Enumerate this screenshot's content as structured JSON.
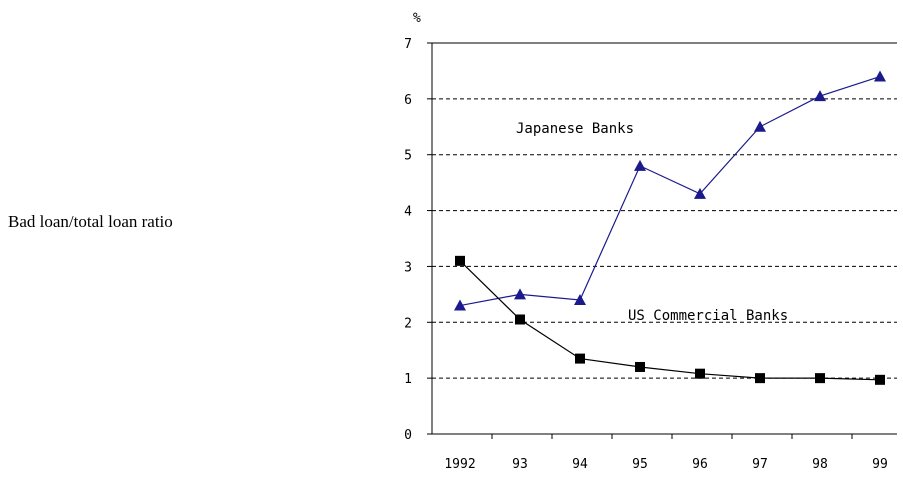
{
  "side_label": "Bad loan/total loan ratio",
  "chart_data": {
    "type": "line",
    "unit_label": "%",
    "categories": [
      "1992",
      "93",
      "94",
      "95",
      "96",
      "97",
      "98",
      "99"
    ],
    "yticks": [
      "0",
      "1",
      "2",
      "3",
      "4",
      "5",
      "6",
      "7"
    ],
    "ylim": [
      0,
      7
    ],
    "grid": "dashed horizontal",
    "series": [
      {
        "name": "Japanese Banks",
        "marker": "triangle",
        "color": "#1a1a8c",
        "values": [
          2.3,
          2.5,
          2.4,
          4.8,
          4.3,
          5.5,
          6.05,
          6.4
        ]
      },
      {
        "name": "US Commercial Banks",
        "marker": "square",
        "color": "#000000",
        "values": [
          3.1,
          2.05,
          1.35,
          1.2,
          1.08,
          1.0,
          1.0,
          0.97
        ]
      }
    ]
  }
}
